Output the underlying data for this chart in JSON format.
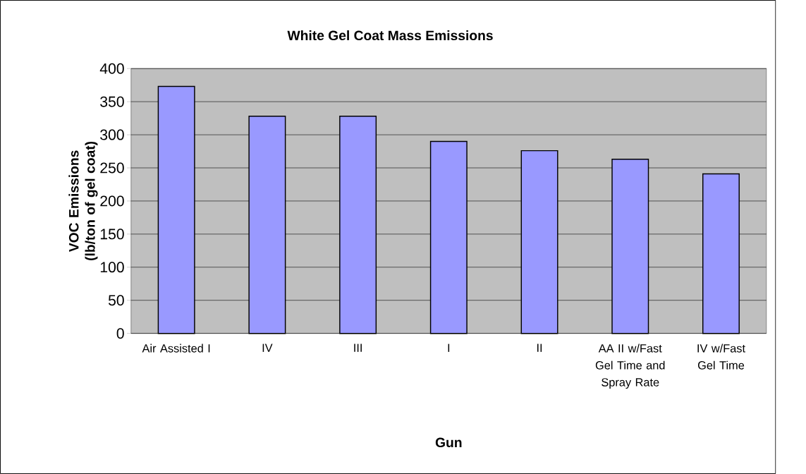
{
  "chart_data": {
    "type": "bar",
    "title": "White Gel Coat Mass Emissions",
    "xlabel": "Gun",
    "ylabel": "VOC Emissions (lb/ton of gel coat)",
    "categories": [
      "Air Assisted I",
      "IV",
      "III",
      "I",
      "II",
      "AA II w/Fast Gel Time and Spray Rate",
      "IV w/Fast Gel Time"
    ],
    "values": [
      373,
      328,
      328,
      290,
      276,
      263,
      241
    ],
    "color": "#9999ff",
    "ylim": [
      0,
      400
    ],
    "yticks": [
      0,
      50,
      100,
      150,
      200,
      250,
      300,
      350,
      400
    ],
    "grid": "y"
  }
}
